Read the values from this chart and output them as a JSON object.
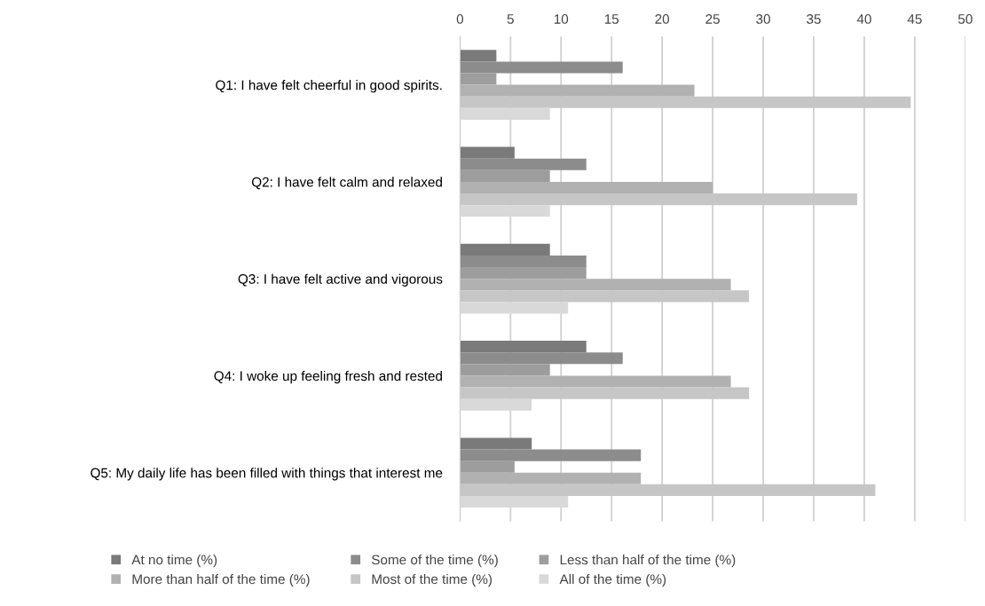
{
  "chart_data": {
    "type": "bar",
    "orientation": "horizontal",
    "categories": [
      "Q1: I have felt cheerful in good spirits.",
      "Q2: I have felt calm and relaxed",
      "Q3: I have felt active and vigorous",
      "Q4: I woke up feeling fresh and rested",
      "Q5: My daily life has been filled with things that interest me"
    ],
    "series": [
      {
        "name": "At no time (%)",
        "color": "#7a7a7a",
        "values": [
          3.6,
          5.4,
          8.9,
          12.5,
          7.1
        ]
      },
      {
        "name": "Some of the time (%)",
        "color": "#8c8c8c",
        "values": [
          16.1,
          12.5,
          12.5,
          16.1,
          17.9
        ]
      },
      {
        "name": "Less than half of the time (%)",
        "color": "#9d9d9d",
        "values": [
          3.6,
          8.9,
          12.5,
          8.9,
          5.4
        ]
      },
      {
        "name": "More than half of the time (%)",
        "color": "#b1b1b1",
        "values": [
          23.2,
          25.0,
          26.8,
          26.8,
          17.9
        ]
      },
      {
        "name": "Most of the time (%)",
        "color": "#c6c6c6",
        "values": [
          44.6,
          39.3,
          28.6,
          28.6,
          41.1
        ]
      },
      {
        "name": "All of the time (%)",
        "color": "#d9d9d9",
        "values": [
          8.9,
          8.9,
          10.7,
          7.1,
          10.7
        ]
      }
    ],
    "xlim": [
      0,
      50
    ],
    "xticks": [
      0,
      5,
      10,
      15,
      20,
      25,
      30,
      35,
      40,
      45,
      50
    ],
    "grid": "x",
    "legend": "bottom"
  }
}
